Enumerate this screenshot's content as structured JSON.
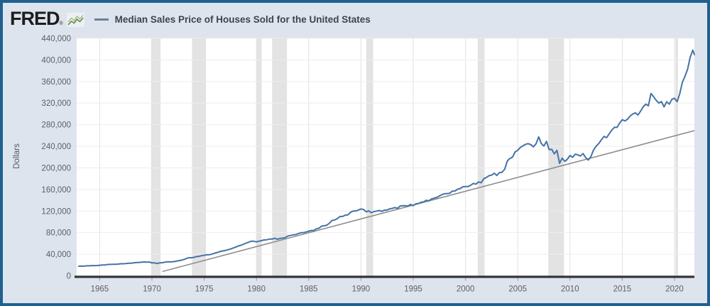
{
  "header": {
    "logo_text": "FRED",
    "logo_registered": "®",
    "legend_label": "Median Sales Price of Houses Sold for the United States"
  },
  "colors": {
    "frame_border": "#20608f",
    "background": "#dee4ee",
    "plot_background": "#ffffff",
    "series_line": "#4572a7",
    "trend_line": "#8a8a8a",
    "recession_band": "#e3e3e3",
    "axis_line": "#333333",
    "tick_text": "#5c6066"
  },
  "chart_data": {
    "type": "line",
    "title": "Median Sales Price of Houses Sold for the United States",
    "xlabel": "",
    "ylabel": "Dollars",
    "xlim": [
      1962.8,
      2021.9
    ],
    "ylim": [
      0,
      440000
    ],
    "grid": true,
    "legend_position": "top-left",
    "x_ticks": [
      1965,
      1970,
      1975,
      1980,
      1985,
      1990,
      1995,
      2000,
      2005,
      2010,
      2015,
      2020
    ],
    "y_ticks": [
      0,
      40000,
      80000,
      120000,
      160000,
      200000,
      240000,
      280000,
      320000,
      360000,
      400000,
      440000
    ],
    "recession_color": "#e3e3e3",
    "recession_bands": [
      [
        1969.92,
        1970.83
      ],
      [
        1973.83,
        1975.17
      ],
      [
        1980.0,
        1980.5
      ],
      [
        1981.5,
        1982.92
      ],
      [
        1990.5,
        1991.17
      ],
      [
        2001.17,
        2001.83
      ],
      [
        2007.92,
        2009.42
      ],
      [
        2020.08,
        2020.33
      ]
    ],
    "trend_line": {
      "x": [
        1971.0,
        2021.9
      ],
      "y": [
        8000,
        269000
      ],
      "color": "#8a8a8a"
    },
    "series": [
      {
        "name": "Median Sales Price of Houses Sold for the United States",
        "color": "#4572a7",
        "points": [
          [
            1963,
            17800
          ],
          [
            1963.25,
            18000
          ],
          [
            1963.5,
            17900
          ],
          [
            1963.75,
            18500
          ],
          [
            1964,
            18500
          ],
          [
            1964.25,
            18900
          ],
          [
            1964.5,
            18900
          ],
          [
            1964.75,
            19100
          ],
          [
            1965,
            19600
          ],
          [
            1965.25,
            20000
          ],
          [
            1965.5,
            20000
          ],
          [
            1965.75,
            21000
          ],
          [
            1966,
            21200
          ],
          [
            1966.25,
            21400
          ],
          [
            1966.5,
            21400
          ],
          [
            1966.75,
            21700
          ],
          [
            1967,
            22400
          ],
          [
            1967.25,
            22400
          ],
          [
            1967.5,
            22700
          ],
          [
            1967.75,
            23300
          ],
          [
            1968,
            23400
          ],
          [
            1968.25,
            24100
          ],
          [
            1968.5,
            24700
          ],
          [
            1968.75,
            24700
          ],
          [
            1969,
            25300
          ],
          [
            1969.25,
            25600
          ],
          [
            1969.5,
            25400
          ],
          [
            1969.75,
            25600
          ],
          [
            1970,
            23900
          ],
          [
            1970.25,
            23900
          ],
          [
            1970.5,
            22900
          ],
          [
            1970.75,
            24100
          ],
          [
            1971,
            24300
          ],
          [
            1971.25,
            25200
          ],
          [
            1971.5,
            25900
          ],
          [
            1971.75,
            25800
          ],
          [
            1972,
            26200
          ],
          [
            1972.25,
            26800
          ],
          [
            1972.5,
            27800
          ],
          [
            1972.75,
            28800
          ],
          [
            1973,
            29900
          ],
          [
            1973.25,
            31700
          ],
          [
            1973.5,
            33500
          ],
          [
            1973.75,
            33500
          ],
          [
            1974,
            34100
          ],
          [
            1974.25,
            35600
          ],
          [
            1974.5,
            36200
          ],
          [
            1974.75,
            37200
          ],
          [
            1975,
            38100
          ],
          [
            1975.25,
            38900
          ],
          [
            1975.5,
            39200
          ],
          [
            1975.75,
            40100
          ],
          [
            1976,
            41900
          ],
          [
            1976.25,
            43300
          ],
          [
            1976.5,
            44800
          ],
          [
            1976.75,
            46100
          ],
          [
            1977,
            46800
          ],
          [
            1977.25,
            48300
          ],
          [
            1977.5,
            49500
          ],
          [
            1977.75,
            51400
          ],
          [
            1978,
            53000
          ],
          [
            1978.25,
            55300
          ],
          [
            1978.5,
            56600
          ],
          [
            1978.75,
            58600
          ],
          [
            1979,
            60500
          ],
          [
            1979.25,
            62400
          ],
          [
            1979.5,
            64100
          ],
          [
            1979.75,
            64100
          ],
          [
            1980,
            62900
          ],
          [
            1980.25,
            64200
          ],
          [
            1980.5,
            65200
          ],
          [
            1980.75,
            66600
          ],
          [
            1981,
            66800
          ],
          [
            1981.25,
            68100
          ],
          [
            1981.5,
            68000
          ],
          [
            1981.75,
            69600
          ],
          [
            1982,
            67800
          ],
          [
            1982.25,
            69200
          ],
          [
            1982.5,
            69900
          ],
          [
            1982.75,
            70600
          ],
          [
            1983,
            73600
          ],
          [
            1983.25,
            74700
          ],
          [
            1983.5,
            75900
          ],
          [
            1983.75,
            76300
          ],
          [
            1984,
            78200
          ],
          [
            1984.25,
            79800
          ],
          [
            1984.5,
            80100
          ],
          [
            1984.75,
            81100
          ],
          [
            1985,
            82800
          ],
          [
            1985.25,
            84100
          ],
          [
            1985.5,
            84200
          ],
          [
            1985.75,
            87100
          ],
          [
            1986,
            88200
          ],
          [
            1986.25,
            92200
          ],
          [
            1986.5,
            92800
          ],
          [
            1986.75,
            94100
          ],
          [
            1987,
            97900
          ],
          [
            1987.25,
            102700
          ],
          [
            1987.5,
            103500
          ],
          [
            1987.75,
            106100
          ],
          [
            1988,
            110000
          ],
          [
            1988.25,
            110000
          ],
          [
            1988.5,
            112500
          ],
          [
            1988.75,
            113000
          ],
          [
            1989,
            117800
          ],
          [
            1989.25,
            120000
          ],
          [
            1989.5,
            120000
          ],
          [
            1989.75,
            122000
          ],
          [
            1990,
            123900
          ],
          [
            1990.25,
            122900
          ],
          [
            1990.5,
            118700
          ],
          [
            1990.75,
            120500
          ],
          [
            1991,
            117000
          ],
          [
            1991.25,
            119000
          ],
          [
            1991.5,
            120000
          ],
          [
            1991.75,
            121000
          ],
          [
            1992,
            119500
          ],
          [
            1992.25,
            121500
          ],
          [
            1992.5,
            122000
          ],
          [
            1992.75,
            124000
          ],
          [
            1993,
            125000
          ],
          [
            1993.25,
            126500
          ],
          [
            1993.5,
            125000
          ],
          [
            1993.75,
            129500
          ],
          [
            1994,
            130000
          ],
          [
            1994.25,
            130000
          ],
          [
            1994.5,
            129500
          ],
          [
            1994.75,
            132300
          ],
          [
            1995,
            130000
          ],
          [
            1995.25,
            133500
          ],
          [
            1995.5,
            134000
          ],
          [
            1995.75,
            136300
          ],
          [
            1996,
            137000
          ],
          [
            1996.25,
            140000
          ],
          [
            1996.5,
            139000
          ],
          [
            1996.75,
            142500
          ],
          [
            1997,
            143900
          ],
          [
            1997.25,
            145400
          ],
          [
            1997.5,
            147900
          ],
          [
            1997.75,
            150500
          ],
          [
            1998,
            152100
          ],
          [
            1998.25,
            152500
          ],
          [
            1998.5,
            153000
          ],
          [
            1998.75,
            157000
          ],
          [
            1999,
            157200
          ],
          [
            1999.25,
            160500
          ],
          [
            1999.5,
            161800
          ],
          [
            1999.75,
            165000
          ],
          [
            2000,
            165300
          ],
          [
            2000.25,
            165500
          ],
          [
            2000.5,
            167800
          ],
          [
            2000.75,
            171200
          ],
          [
            2001,
            169800
          ],
          [
            2001.25,
            174000
          ],
          [
            2001.5,
            172500
          ],
          [
            2001.75,
            180000
          ],
          [
            2002,
            182300
          ],
          [
            2002.25,
            185500
          ],
          [
            2002.5,
            186500
          ],
          [
            2002.75,
            190100
          ],
          [
            2003,
            186000
          ],
          [
            2003.25,
            191300
          ],
          [
            2003.5,
            191900
          ],
          [
            2003.75,
            197500
          ],
          [
            2004,
            212700
          ],
          [
            2004.25,
            217600
          ],
          [
            2004.5,
            219900
          ],
          [
            2004.75,
            229600
          ],
          [
            2005,
            232500
          ],
          [
            2005.25,
            237900
          ],
          [
            2005.5,
            240900
          ],
          [
            2005.75,
            243600
          ],
          [
            2006,
            244900
          ],
          [
            2006.25,
            243100
          ],
          [
            2006.5,
            239000
          ],
          [
            2006.75,
            244700
          ],
          [
            2007,
            257400
          ],
          [
            2007.25,
            245300
          ],
          [
            2007.5,
            240500
          ],
          [
            2007.75,
            249100
          ],
          [
            2008,
            233900
          ],
          [
            2008.25,
            234300
          ],
          [
            2008.5,
            226000
          ],
          [
            2008.75,
            232400
          ],
          [
            2009,
            208400
          ],
          [
            2009.25,
            218000
          ],
          [
            2009.5,
            212000
          ],
          [
            2009.75,
            216000
          ],
          [
            2010,
            222900
          ],
          [
            2010.25,
            219500
          ],
          [
            2010.5,
            225500
          ],
          [
            2010.75,
            224000
          ],
          [
            2011,
            222000
          ],
          [
            2011.25,
            226500
          ],
          [
            2011.5,
            219000
          ],
          [
            2011.75,
            214500
          ],
          [
            2012,
            221000
          ],
          [
            2012.25,
            233000
          ],
          [
            2012.5,
            240000
          ],
          [
            2012.75,
            245000
          ],
          [
            2013,
            252000
          ],
          [
            2013.25,
            258400
          ],
          [
            2013.5,
            256000
          ],
          [
            2013.75,
            263000
          ],
          [
            2014,
            270000
          ],
          [
            2014.25,
            275200
          ],
          [
            2014.5,
            275000
          ],
          [
            2014.75,
            283000
          ],
          [
            2015,
            289200
          ],
          [
            2015.25,
            287000
          ],
          [
            2015.5,
            290000
          ],
          [
            2015.75,
            296000
          ],
          [
            2016,
            299800
          ],
          [
            2016.25,
            302000
          ],
          [
            2016.5,
            298000
          ],
          [
            2016.75,
            305000
          ],
          [
            2017,
            313100
          ],
          [
            2017.25,
            318000
          ],
          [
            2017.5,
            315000
          ],
          [
            2017.75,
            337900
          ],
          [
            2018,
            331800
          ],
          [
            2018.25,
            325000
          ],
          [
            2018.5,
            320000
          ],
          [
            2018.75,
            322800
          ],
          [
            2019,
            313000
          ],
          [
            2019.25,
            322500
          ],
          [
            2019.5,
            318000
          ],
          [
            2019.75,
            327100
          ],
          [
            2020,
            329000
          ],
          [
            2020.25,
            322600
          ],
          [
            2020.5,
            337500
          ],
          [
            2020.75,
            358700
          ],
          [
            2021,
            369800
          ],
          [
            2021.25,
            382600
          ],
          [
            2021.5,
            405000
          ],
          [
            2021.75,
            418000
          ],
          [
            2021.9,
            410000
          ]
        ]
      }
    ]
  }
}
